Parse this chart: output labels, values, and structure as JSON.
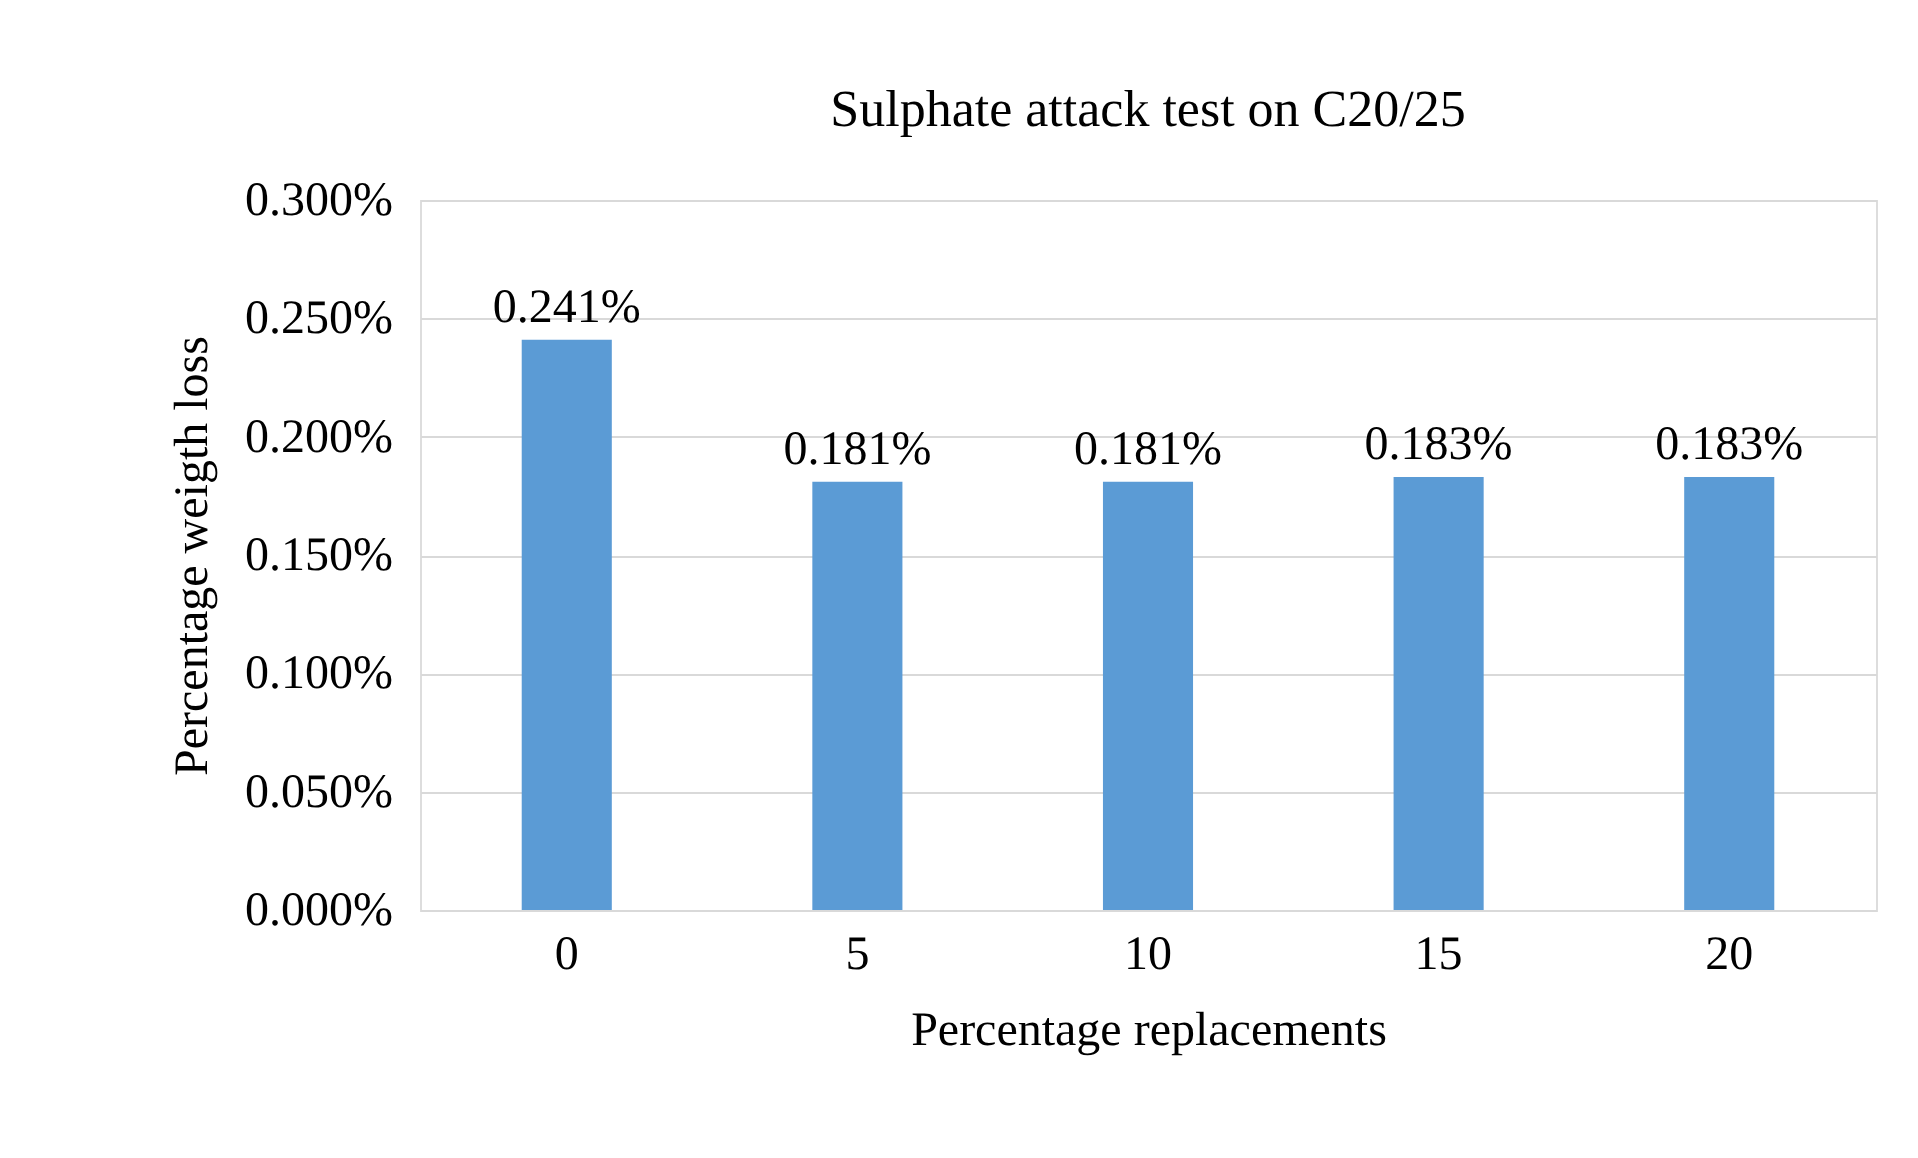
{
  "chart_data": {
    "type": "bar",
    "title": "Sulphate attack test on C20/25",
    "xlabel": "Percentage replacements",
    "ylabel": "Percentage weigth loss",
    "categories": [
      "0",
      "5",
      "10",
      "15",
      "20"
    ],
    "series": [
      {
        "color": "#5b9bd5",
        "values": [
          0.241,
          0.181,
          0.181,
          0.183,
          0.183
        ],
        "value_labels": [
          "0.241%",
          "0.181%",
          "0.181%",
          "0.183%",
          "0.183%"
        ]
      }
    ],
    "ylim": [
      0,
      0.3
    ],
    "yticks": [
      {
        "value": 0,
        "label": "0.000%"
      },
      {
        "value": 0.05,
        "label": "0.050%"
      },
      {
        "value": 0.1,
        "label": "0.100%"
      },
      {
        "value": 0.15,
        "label": "0.150%"
      },
      {
        "value": 0.2,
        "label": "0.200%"
      },
      {
        "value": 0.25,
        "label": "0.250%"
      },
      {
        "value": 0.3,
        "label": "0.300%"
      }
    ],
    "grid": "y"
  }
}
